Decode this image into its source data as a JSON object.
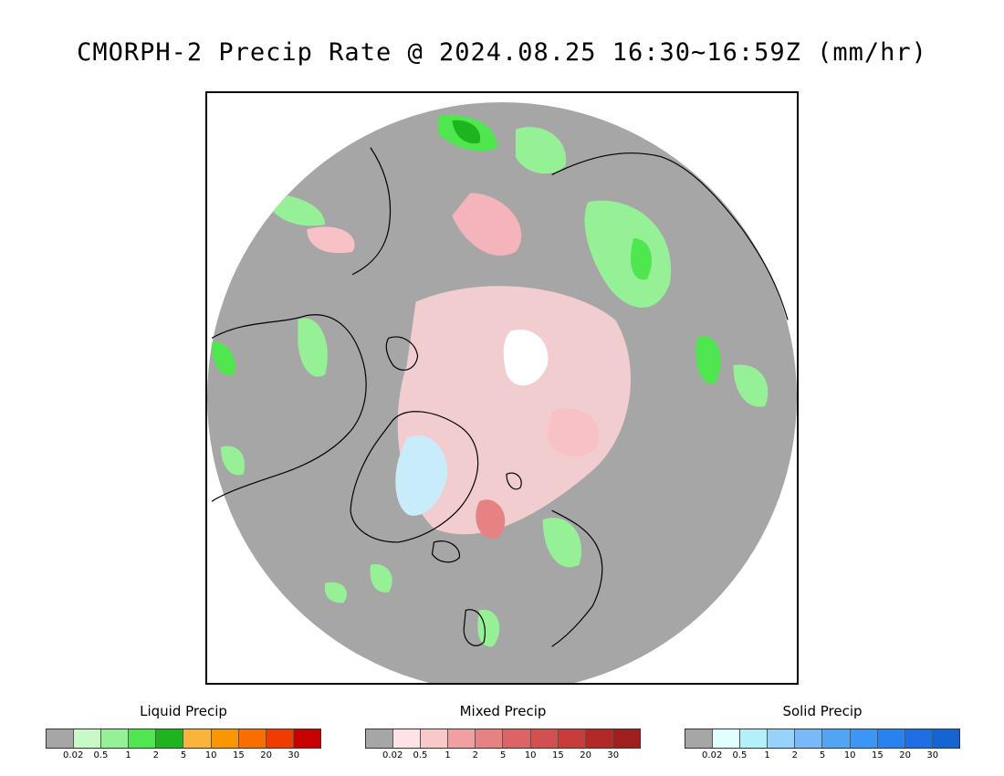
{
  "title": "CMORPH-2 Precip Rate @ 2024.08.25 16:30~16:59Z (mm/hr)",
  "map": {
    "projection": "north-polar-stereographic",
    "background_color": "#a6a6a6",
    "coastline_color": "#000000"
  },
  "legends": [
    {
      "title": "Liquid Precip",
      "colors": [
        "#a6a6a6",
        "#c8fac8",
        "#96f096",
        "#50e650",
        "#1eb41e",
        "#fab43c",
        "#fa9600",
        "#fa6e00",
        "#f03c00",
        "#c80000"
      ],
      "ticks": [
        "0.02",
        "0.5",
        "1",
        "2",
        "5",
        "10",
        "15",
        "20",
        "30"
      ]
    },
    {
      "title": "Mixed Precip",
      "colors": [
        "#a6a6a6",
        "#fde3e6",
        "#fac8c8",
        "#f0a0a0",
        "#e68282",
        "#dc6464",
        "#d25050",
        "#c83c3c",
        "#b42828",
        "#a01e1e"
      ],
      "ticks": [
        "0.02",
        "0.5",
        "1",
        "2",
        "5",
        "10",
        "15",
        "20",
        "30"
      ]
    },
    {
      "title": "Solid Precip",
      "colors": [
        "#a6a6a6",
        "#e1ffff",
        "#b4f0fa",
        "#96d2fa",
        "#78b9fa",
        "#50a5f5",
        "#3c96f5",
        "#2882f0",
        "#1e6ee6",
        "#1464d2"
      ],
      "ticks": [
        "0.02",
        "0.5",
        "1",
        "2",
        "5",
        "10",
        "15",
        "20",
        "30"
      ]
    }
  ]
}
